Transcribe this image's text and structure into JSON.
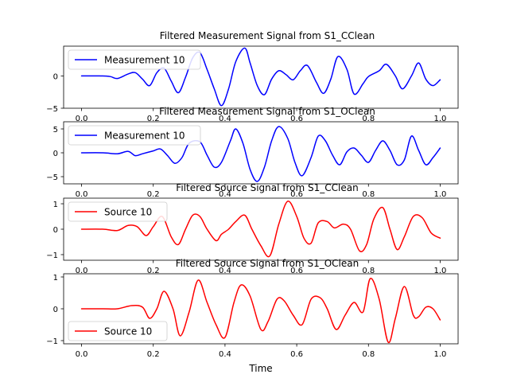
{
  "colors": {
    "blue": "#0000ff",
    "red": "#ff0000",
    "axis": "#000000",
    "legend_border": "#cccccc"
  },
  "figure": {
    "xlabel": "Time"
  },
  "chart_data": [
    {
      "type": "line",
      "title": "Filtered Measurement Signal from S1_CClean",
      "xlabel": "",
      "ylabel": "",
      "xlim": [
        -0.05,
        1.05
      ],
      "ylim": [
        -5,
        4.6
      ],
      "xticks": [
        0.0,
        0.2,
        0.4,
        0.6,
        0.8,
        1.0
      ],
      "xtick_labels": [
        "0.0",
        "0.2",
        "0.4",
        "0.6",
        "0.8",
        "1.0"
      ],
      "yticks": [
        -5,
        0
      ],
      "ytick_labels": [
        "−5",
        "0"
      ],
      "legend": {
        "label": "Measurement 10",
        "position": "upper left"
      },
      "series": [
        {
          "name": "Measurement 10",
          "color": "#0000ff",
          "x": [
            0.0,
            0.05,
            0.08,
            0.1,
            0.13,
            0.15,
            0.17,
            0.19,
            0.21,
            0.23,
            0.25,
            0.27,
            0.29,
            0.31,
            0.33,
            0.35,
            0.37,
            0.39,
            0.41,
            0.43,
            0.455,
            0.47,
            0.49,
            0.51,
            0.53,
            0.55,
            0.57,
            0.59,
            0.61,
            0.63,
            0.655,
            0.675,
            0.695,
            0.715,
            0.74,
            0.76,
            0.785,
            0.8,
            0.83,
            0.85,
            0.875,
            0.895,
            0.92,
            0.94,
            0.96,
            0.98,
            1.0
          ],
          "y": [
            0.0,
            0.0,
            -0.1,
            -0.4,
            0.3,
            0.5,
            -0.5,
            -1.5,
            0.5,
            1.2,
            -0.8,
            -2.6,
            -0.2,
            2.8,
            3.6,
            1.0,
            -2.0,
            -4.6,
            -2.0,
            2.2,
            4.3,
            2.0,
            -1.5,
            -2.9,
            -0.5,
            0.8,
            0.2,
            -0.6,
            0.8,
            1.6,
            -1.0,
            -2.7,
            -0.5,
            3.0,
            1.0,
            -2.8,
            -1.2,
            -0.1,
            0.8,
            1.8,
            0.0,
            -2.0,
            0.0,
            2.0,
            -0.5,
            -1.5,
            -0.6
          ]
        }
      ]
    },
    {
      "type": "line",
      "title": "Filtered Measurement Signal from S1_OClean",
      "xlabel": "",
      "ylabel": "",
      "xlim": [
        -0.05,
        1.05
      ],
      "ylim": [
        -6.5,
        6.5
      ],
      "xticks": [
        0.0,
        0.2,
        0.4,
        0.6,
        0.8,
        1.0
      ],
      "xtick_labels": [
        "0.0",
        "0.2",
        "0.4",
        "0.6",
        "0.8",
        "1.0"
      ],
      "yticks": [
        -5,
        0,
        5
      ],
      "ytick_labels": [
        "−5",
        "0",
        "5"
      ],
      "legend": {
        "label": "Measurement 10",
        "position": "upper left"
      },
      "series": [
        {
          "name": "Measurement 10",
          "color": "#0000ff",
          "x": [
            0.0,
            0.06,
            0.1,
            0.13,
            0.15,
            0.17,
            0.2,
            0.22,
            0.24,
            0.26,
            0.28,
            0.3,
            0.33,
            0.35,
            0.37,
            0.39,
            0.415,
            0.43,
            0.45,
            0.47,
            0.49,
            0.51,
            0.53,
            0.55,
            0.575,
            0.595,
            0.615,
            0.64,
            0.66,
            0.68,
            0.7,
            0.72,
            0.74,
            0.76,
            0.78,
            0.8,
            0.82,
            0.84,
            0.86,
            0.88,
            0.9,
            0.92,
            0.94,
            0.96,
            0.98,
            1.0
          ],
          "y": [
            0.0,
            0.0,
            -0.2,
            0.3,
            -0.6,
            -0.2,
            0.4,
            0.8,
            -0.6,
            -2.2,
            -1.0,
            2.0,
            2.3,
            -0.5,
            -3.0,
            -2.0,
            2.5,
            5.0,
            2.0,
            -3.5,
            -6.0,
            -3.0,
            2.5,
            5.5,
            3.0,
            -2.0,
            -4.8,
            -1.0,
            3.5,
            2.5,
            -0.5,
            -2.5,
            0.2,
            1.0,
            -0.5,
            -2.0,
            0.5,
            2.5,
            0.5,
            -2.5,
            -1.5,
            3.5,
            0.5,
            -2.5,
            -1.0,
            1.0
          ]
        }
      ]
    },
    {
      "type": "line",
      "title": "Filtered Source Signal from S1_CClean",
      "xlabel": "",
      "ylabel": "",
      "xlim": [
        -0.05,
        1.05
      ],
      "ylim": [
        -1.22,
        1.22
      ],
      "xticks": [
        0.0,
        0.2,
        0.4,
        0.6,
        0.8,
        1.0
      ],
      "xtick_labels": [
        "0.0",
        "0.2",
        "0.4",
        "0.6",
        "0.8",
        "1.0"
      ],
      "yticks": [
        -1,
        0,
        1
      ],
      "ytick_labels": [
        "−1",
        "0",
        "1"
      ],
      "legend": {
        "label": "Source 10",
        "position": "upper left"
      },
      "series": [
        {
          "name": "Source 10",
          "color": "#ff0000",
          "x": [
            0.0,
            0.06,
            0.1,
            0.13,
            0.155,
            0.18,
            0.2,
            0.225,
            0.25,
            0.27,
            0.29,
            0.31,
            0.33,
            0.35,
            0.375,
            0.39,
            0.41,
            0.43,
            0.455,
            0.475,
            0.5,
            0.525,
            0.55,
            0.575,
            0.6,
            0.62,
            0.64,
            0.66,
            0.685,
            0.705,
            0.73,
            0.75,
            0.775,
            0.795,
            0.815,
            0.84,
            0.86,
            0.88,
            0.9,
            0.925,
            0.95,
            0.975,
            1.0
          ],
          "y": [
            0.0,
            0.0,
            -0.05,
            0.15,
            0.1,
            -0.25,
            0.1,
            0.5,
            -0.3,
            -0.6,
            0.0,
            0.55,
            0.5,
            0.0,
            -0.45,
            -0.2,
            0.0,
            0.3,
            0.55,
            0.0,
            -0.65,
            -1.05,
            0.2,
            1.1,
            0.5,
            -0.35,
            -0.55,
            0.25,
            0.3,
            0.05,
            0.2,
            0.0,
            -0.85,
            -0.6,
            0.4,
            0.85,
            0.0,
            -0.8,
            -0.3,
            0.5,
            0.45,
            -0.15,
            -0.35
          ]
        }
      ]
    },
    {
      "type": "line",
      "title": "Filtered Source Signal from S1_OClean",
      "xlabel": "Time",
      "ylabel": "",
      "xlim": [
        -0.05,
        1.05
      ],
      "ylim": [
        -1.1,
        1.1
      ],
      "xticks": [
        0.0,
        0.2,
        0.4,
        0.6,
        0.8,
        1.0
      ],
      "xtick_labels": [
        "0.0",
        "0.2",
        "0.4",
        "0.6",
        "0.8",
        "1.0"
      ],
      "yticks": [
        -1,
        0,
        1
      ],
      "ytick_labels": [
        "−1",
        "0",
        "1"
      ],
      "legend": {
        "label": "Source 10",
        "position": "lower left"
      },
      "series": [
        {
          "name": "Source 10",
          "color": "#ff0000",
          "x": [
            0.0,
            0.06,
            0.1,
            0.14,
            0.17,
            0.19,
            0.21,
            0.23,
            0.255,
            0.275,
            0.3,
            0.325,
            0.35,
            0.375,
            0.4,
            0.425,
            0.445,
            0.47,
            0.5,
            0.52,
            0.545,
            0.565,
            0.59,
            0.615,
            0.64,
            0.665,
            0.685,
            0.71,
            0.735,
            0.76,
            0.785,
            0.805,
            0.83,
            0.855,
            0.875,
            0.9,
            0.925,
            0.94,
            0.96,
            0.98,
            1.0
          ],
          "y": [
            0.0,
            0.0,
            0.0,
            0.1,
            0.05,
            -0.3,
            0.0,
            0.55,
            0.0,
            -0.85,
            -0.1,
            0.9,
            0.2,
            -0.5,
            -0.9,
            0.2,
            0.75,
            0.4,
            -0.65,
            -0.4,
            0.3,
            0.25,
            -0.2,
            -0.5,
            0.3,
            0.35,
            0.0,
            -0.65,
            -0.2,
            0.2,
            -0.1,
            0.95,
            0.3,
            -1.05,
            -0.3,
            0.7,
            -0.2,
            -0.25,
            0.05,
            0.0,
            -0.35
          ]
        }
      ]
    }
  ]
}
